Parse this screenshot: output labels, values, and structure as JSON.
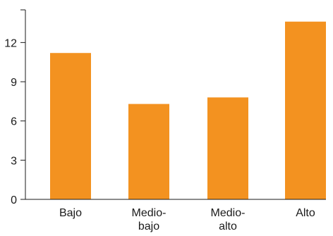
{
  "chart_data": {
    "type": "bar",
    "categories": [
      [
        "Bajo"
      ],
      [
        "Medio-",
        "bajo"
      ],
      [
        "Medio-",
        "alto"
      ],
      [
        "Alto"
      ]
    ],
    "values": [
      11.2,
      7.3,
      7.8,
      13.6
    ],
    "yticks": [
      "0",
      "3",
      "6",
      "9",
      "12"
    ],
    "ylim": [
      0,
      14.5
    ],
    "grid": false,
    "legend": "none",
    "colors": {
      "bar": "#f39220",
      "axis": "#1a1a1a"
    }
  }
}
